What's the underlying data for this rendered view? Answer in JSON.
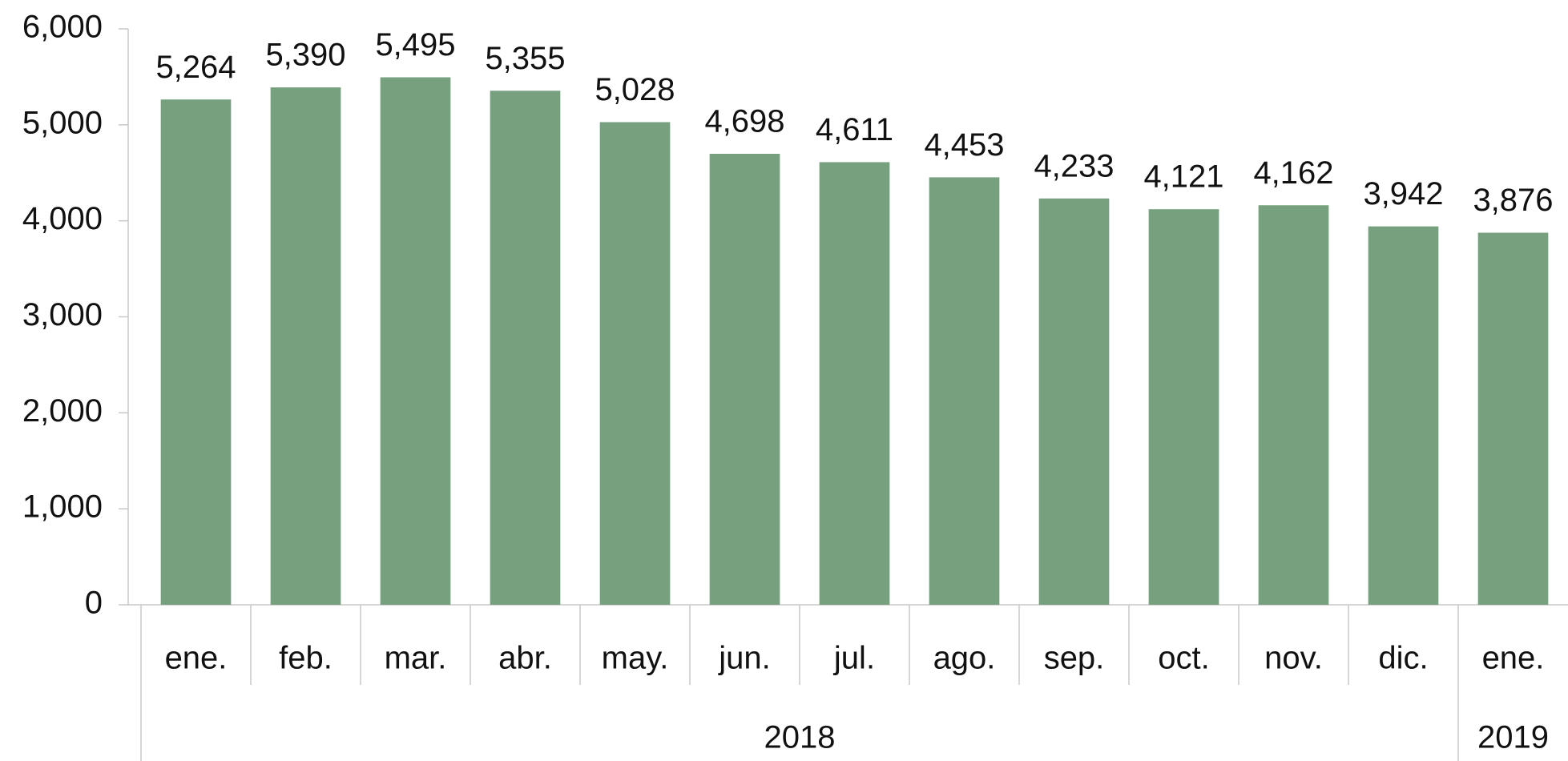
{
  "chart_data": {
    "type": "bar",
    "groups": [
      {
        "label": "2018",
        "categories": [
          "ene.",
          "feb.",
          "mar.",
          "abr.",
          "may.",
          "jun.",
          "jul.",
          "ago.",
          "sep.",
          "oct.",
          "nov.",
          "dic."
        ]
      },
      {
        "label": "2019",
        "categories": [
          "ene."
        ]
      }
    ],
    "values": [
      5264,
      5390,
      5495,
      5355,
      5028,
      4698,
      4611,
      4453,
      4233,
      4121,
      4162,
      3942,
      3876
    ],
    "value_labels": [
      "5,264",
      "5,390",
      "5,495",
      "5,355",
      "5,028",
      "4,698",
      "4,611",
      "4,453",
      "4,233",
      "4,121",
      "4,162",
      "3,942",
      "3,876"
    ],
    "color": "#76a07e",
    "ylim": [
      0,
      6000
    ],
    "yticks": [
      0,
      {
        "value": 1000,
        "label": "1,000"
      },
      {
        "value": 2000,
        "label": "2,000"
      },
      {
        "value": 3000,
        "label": "3,000"
      },
      {
        "value": 4000,
        "label": "4,000"
      },
      {
        "value": 5000,
        "label": "5,000"
      },
      {
        "value": 6000,
        "label": "6,000"
      }
    ],
    "grid": false
  }
}
